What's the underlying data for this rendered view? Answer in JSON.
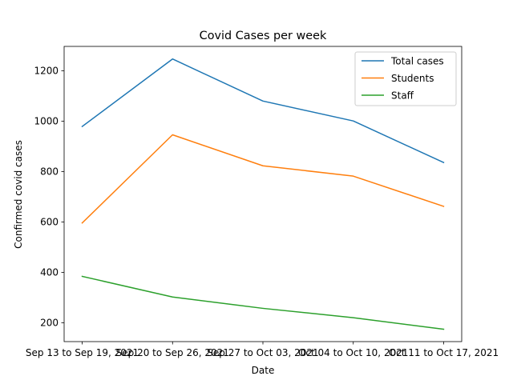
{
  "chart_data": {
    "type": "line",
    "title": "Covid Cases per week",
    "xlabel": "Date",
    "ylabel": "Confirmed covid cases",
    "categories": [
      "Sep 13 to Sep 19, 2021",
      "Sep 20 to Sep 26, 2021",
      "Sep 27 to Oct 03, 2021",
      "Oct 04 to Oct 10, 2021",
      "Oct 11 to Oct 17, 2021"
    ],
    "series": [
      {
        "name": "Total cases",
        "color": "#1f77b4",
        "values": [
          979,
          1247,
          1080,
          1001,
          836
        ]
      },
      {
        "name": "Students",
        "color": "#ff7f0e",
        "values": [
          596,
          946,
          823,
          782,
          662
        ]
      },
      {
        "name": "Staff",
        "color": "#2ca02c",
        "values": [
          384,
          302,
          257,
          220,
          174
        ]
      }
    ],
    "yticks": [
      200,
      400,
      600,
      800,
      1000,
      1200
    ],
    "ylim": [
      125,
      1297
    ],
    "grid": false,
    "legend": "top-right"
  }
}
